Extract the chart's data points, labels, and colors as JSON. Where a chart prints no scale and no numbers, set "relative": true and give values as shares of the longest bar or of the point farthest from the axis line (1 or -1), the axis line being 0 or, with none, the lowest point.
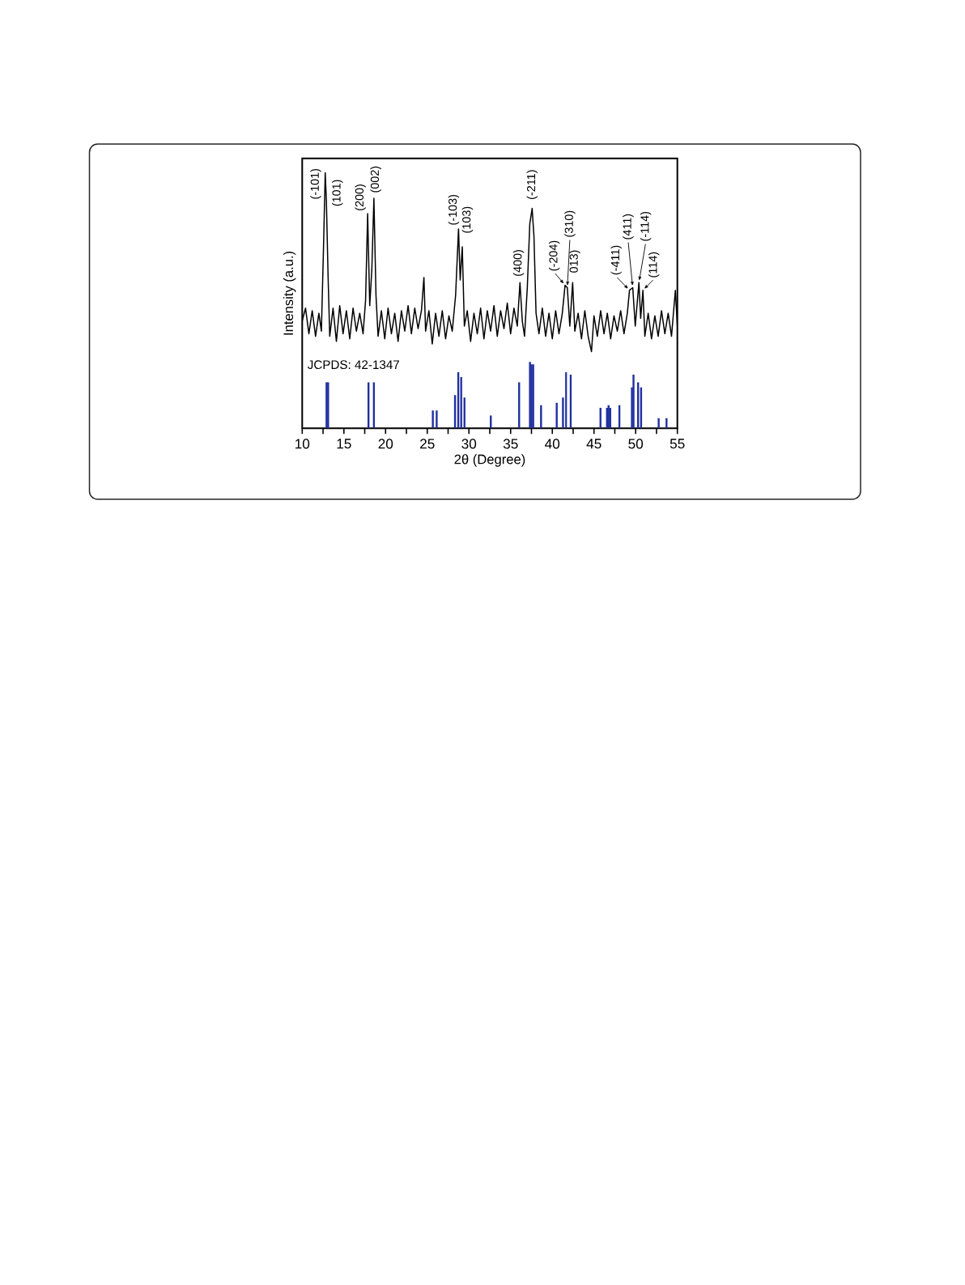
{
  "chart_data": {
    "type": "bar",
    "xlabel": "2θ (Degree)",
    "ylabel": "Intensity (a.u.)",
    "relative": true,
    "xlim": [
      10,
      55
    ],
    "xticks": [
      10,
      {
        "value": 12.5,
        "label": null
      },
      15,
      {
        "value": 17.5,
        "label": null
      },
      20,
      {
        "value": 22.5,
        "label": null
      },
      25,
      {
        "value": 27.5,
        "label": null
      },
      30,
      {
        "value": 32.5,
        "label": null
      },
      35,
      {
        "value": 37.5,
        "label": null
      },
      40,
      {
        "value": 42.5,
        "label": null
      },
      45,
      {
        "value": 47.5,
        "label": null
      },
      50,
      {
        "value": 52.5,
        "label": null
      },
      55
    ],
    "series": [
      {
        "type": "line",
        "color": "#000000",
        "x": [
          10.0,
          10.4,
          10.8,
          11.2,
          11.6,
          12.0,
          12.3,
          12.55,
          12.76,
          12.9,
          13.1,
          13.3,
          13.7,
          14.1,
          14.5,
          14.9,
          15.3,
          15.7,
          16.1,
          16.5,
          16.9,
          17.3,
          17.6,
          17.85,
          18.1,
          18.35,
          18.6,
          18.85,
          19.1,
          19.5,
          19.9,
          20.3,
          20.7,
          21.1,
          21.5,
          21.9,
          22.3,
          22.7,
          23.1,
          23.5,
          23.9,
          24.3,
          24.6,
          24.8,
          25.2,
          25.6,
          26.0,
          26.4,
          26.8,
          27.2,
          27.6,
          28.0,
          28.4,
          28.75,
          28.95,
          29.2,
          29.45,
          29.8,
          30.2,
          30.6,
          31.0,
          31.4,
          31.8,
          32.2,
          32.6,
          33.0,
          33.4,
          33.8,
          34.2,
          34.6,
          35.0,
          35.4,
          35.8,
          36.12,
          36.4,
          36.67,
          37.0,
          37.3,
          37.58,
          37.8,
          38.05,
          38.4,
          38.8,
          39.2,
          39.6,
          40.0,
          40.4,
          40.8,
          41.2,
          41.53,
          41.8,
          42.1,
          42.44,
          42.7,
          43.1,
          43.5,
          43.9,
          44.3,
          44.7,
          45.0,
          45.4,
          45.8,
          46.2,
          46.6,
          47.0,
          47.4,
          47.8,
          48.2,
          48.6,
          49.0,
          49.26,
          49.65,
          49.95,
          50.39,
          50.6,
          50.87,
          51.1,
          51.5,
          51.9,
          52.3,
          52.7,
          53.1,
          53.5,
          53.9,
          54.3,
          54.76,
          55.0
        ],
        "values": [
          0.42,
          0.47,
          0.37,
          0.46,
          0.36,
          0.45,
          0.38,
          0.7,
          1.0,
          0.89,
          0.6,
          0.36,
          0.47,
          0.34,
          0.48,
          0.37,
          0.46,
          0.35,
          0.47,
          0.38,
          0.45,
          0.37,
          0.5,
          0.84,
          0.48,
          0.62,
          0.9,
          0.52,
          0.36,
          0.46,
          0.35,
          0.47,
          0.37,
          0.45,
          0.34,
          0.46,
          0.38,
          0.48,
          0.37,
          0.47,
          0.39,
          0.46,
          0.59,
          0.38,
          0.46,
          0.33,
          0.45,
          0.36,
          0.46,
          0.35,
          0.44,
          0.38,
          0.52,
          0.78,
          0.58,
          0.71,
          0.4,
          0.46,
          0.34,
          0.45,
          0.37,
          0.47,
          0.35,
          0.46,
          0.38,
          0.48,
          0.36,
          0.46,
          0.39,
          0.49,
          0.37,
          0.47,
          0.4,
          0.57,
          0.42,
          0.36,
          0.55,
          0.8,
          0.86,
          0.75,
          0.45,
          0.37,
          0.47,
          0.36,
          0.45,
          0.35,
          0.46,
          0.37,
          0.45,
          0.56,
          0.55,
          0.4,
          0.57,
          0.38,
          0.45,
          0.35,
          0.46,
          0.36,
          0.3,
          0.44,
          0.36,
          0.46,
          0.37,
          0.45,
          0.35,
          0.44,
          0.38,
          0.46,
          0.37,
          0.45,
          0.54,
          0.55,
          0.4,
          0.57,
          0.43,
          0.54,
          0.36,
          0.45,
          0.35,
          0.44,
          0.36,
          0.46,
          0.37,
          0.45,
          0.36,
          0.54,
          0.4
        ]
      },
      {
        "color": "#2030a0",
        "x": [
          12.92,
          13.11,
          17.95,
          18.6,
          25.67,
          26.13,
          28.33,
          28.72,
          29.07,
          29.46,
          32.62,
          36.02,
          37.32,
          37.51,
          37.71,
          38.65,
          40.53,
          41.28,
          41.66,
          42.21,
          45.78,
          46.56,
          46.75,
          46.95,
          48.05,
          49.55,
          49.74,
          50.29,
          50.65,
          52.76,
          53.7
        ],
        "values": [
          0.18,
          0.18,
          0.18,
          0.18,
          0.07,
          0.07,
          0.13,
          0.22,
          0.2,
          0.12,
          0.05,
          0.18,
          0.26,
          0.25,
          0.25,
          0.09,
          0.1,
          0.12,
          0.22,
          0.21,
          0.08,
          0.08,
          0.09,
          0.08,
          0.09,
          0.16,
          0.21,
          0.18,
          0.16,
          0.04,
          0.04
        ]
      }
    ],
    "annotations": [
      {
        "text": "(-101)",
        "x": 12.76,
        "y": 1.0
      },
      {
        "text": "(101)",
        "x": 12.9,
        "y": 0.89
      },
      {
        "text": "(200)",
        "x": 17.85,
        "y": 0.84
      },
      {
        "text": "(002)",
        "x": 18.6,
        "y": 0.9
      },
      {
        "text": "(-103)",
        "x": 28.75,
        "y": 0.78
      },
      {
        "text": "(103)",
        "x": 29.2,
        "y": 0.71
      },
      {
        "text": "(400)",
        "x": 36.12,
        "y": 0.57
      },
      {
        "text": "(-211)",
        "x": 37.58,
        "y": 0.86
      },
      {
        "text": "(-204)",
        "x": 41.53,
        "y": 0.56
      },
      {
        "text": "(310)",
        "x": 41.8,
        "y": 0.55
      },
      {
        "text": "013)",
        "x": 42.44,
        "y": 0.57
      },
      {
        "text": "(-411)",
        "x": 49.26,
        "y": 0.54
      },
      {
        "text": "(411)",
        "x": 49.65,
        "y": 0.55
      },
      {
        "text": "(-114)",
        "x": 50.39,
        "y": 0.57
      },
      {
        "text": "(114)",
        "x": 50.87,
        "y": 0.54
      },
      "JCPDS: 42-1347"
    ]
  }
}
